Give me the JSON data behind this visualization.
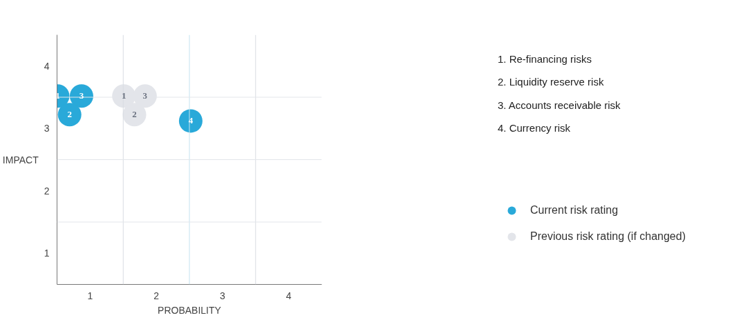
{
  "chart_data": {
    "type": "scatter",
    "xlabel": "PROBABILITY",
    "ylabel": "IMPACT",
    "xlim": [
      0.5,
      4.5
    ],
    "ylim": [
      0.5,
      4.5
    ],
    "xticks": [
      1,
      2,
      3,
      4
    ],
    "yticks": [
      1,
      2,
      3,
      4
    ],
    "grid": false,
    "legend": "right",
    "marker": "circle",
    "ref_lines": [
      {
        "axis": "x",
        "value": 1.5,
        "color": "#d8dce2"
      },
      {
        "axis": "x",
        "value": 2.5,
        "color": "#c4e2f0"
      },
      {
        "axis": "x",
        "value": 3.5,
        "color": "#d8dce2"
      },
      {
        "axis": "y",
        "value": 1.5,
        "color": "#e3e6ea"
      },
      {
        "axis": "y",
        "value": 2.5,
        "color": "#e3e6ea"
      },
      {
        "axis": "y",
        "value": 3.5,
        "color": "#e3e6ea"
      }
    ],
    "series": [
      {
        "name": "Previous risk rating (if changed)",
        "color": "#e3e5ea",
        "x": [
          1.51,
          1.83,
          1.67
        ],
        "values": [
          3.52,
          3.52,
          3.22
        ]
      },
      {
        "name": "Current risk rating",
        "color": "#29a9d9",
        "x": [
          0.51,
          0.87,
          0.69,
          2.52
        ],
        "values": [
          3.52,
          3.52,
          3.22,
          3.12
        ]
      }
    ],
    "annotations": [
      "1. Re-financing risks",
      "2. Liquidity reserve risk",
      "3. Accounts receivable risk",
      "4. Currency risk",
      {
        "text": "1",
        "x": 1.51,
        "y": 3.52
      },
      {
        "text": "3",
        "x": 1.83,
        "y": 3.52
      },
      {
        "text": "2",
        "x": 1.67,
        "y": 3.22
      },
      {
        "text": "1",
        "x": 0.51,
        "y": 3.52
      },
      {
        "text": "3",
        "x": 0.87,
        "y": 3.52
      },
      {
        "text": "2",
        "x": 0.69,
        "y": 3.22
      },
      {
        "text": "4",
        "x": 2.52,
        "y": 3.12
      }
    ]
  }
}
